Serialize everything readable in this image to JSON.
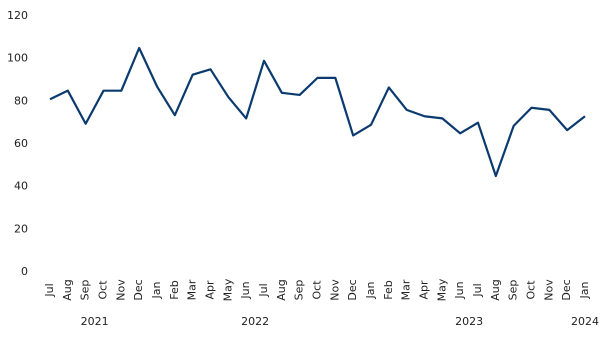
{
  "chart_data": {
    "type": "line",
    "categories": [
      "Jul",
      "Aug",
      "Sep",
      "Oct",
      "Nov",
      "Dec",
      "Jan",
      "Feb",
      "Mar",
      "Apr",
      "May",
      "Jun",
      "Jul",
      "Aug",
      "Sep",
      "Oct",
      "Nov",
      "Dec",
      "Jan",
      "Feb",
      "Mar",
      "Apr",
      "May",
      "Jun",
      "Jul",
      "Aug",
      "Sep",
      "Oct",
      "Nov",
      "Dec",
      "Jan"
    ],
    "year_groups": [
      {
        "label": "2021",
        "start": 0,
        "end": 5
      },
      {
        "label": "2022",
        "start": 6,
        "end": 17
      },
      {
        "label": "2023",
        "start": 18,
        "end": 29
      },
      {
        "label": "2024",
        "start": 30,
        "end": 30
      }
    ],
    "series": [
      {
        "color": "#0b3a6f",
        "values": [
          81,
          85,
          69.5,
          85,
          85,
          105,
          87,
          73.5,
          92.5,
          95,
          82,
          72,
          99,
          84,
          83,
          91,
          91,
          64,
          69,
          86.5,
          76,
          73,
          72,
          65,
          70,
          45,
          68.5,
          77,
          76,
          66.5,
          73
        ]
      }
    ],
    "ylim": [
      0,
      120
    ],
    "yticks": [
      0,
      20,
      40,
      60,
      80,
      100,
      120
    ],
    "grid": false
  }
}
